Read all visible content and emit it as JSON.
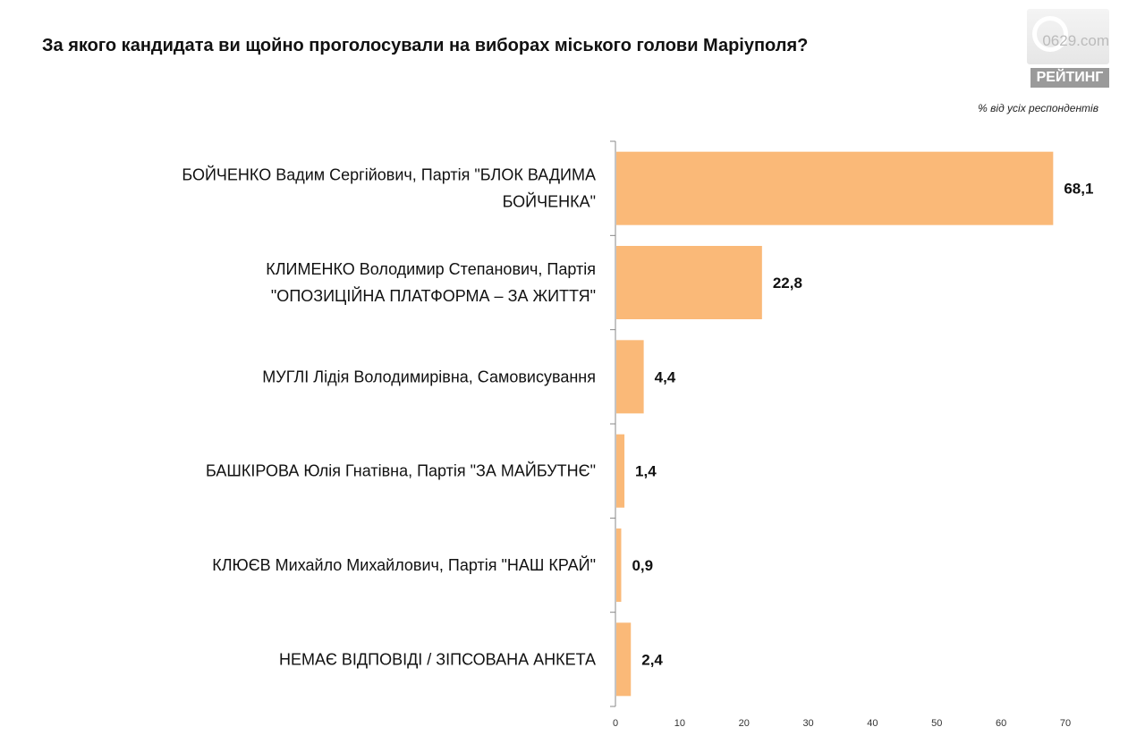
{
  "chart_data": {
    "type": "bar",
    "orientation": "horizontal",
    "title": "За якого кандидата ви щойно проголосували на виборах міського голови Маріуполя?",
    "subtitle": "% від усіх респондентів",
    "categories": [
      [
        "БОЙЧЕНКО Вадим Сергійович, Партія \"БЛОК ВАДИМА",
        "БОЙЧЕНКА\""
      ],
      [
        "КЛИМЕНКО Володимир Степанович, Партія",
        "\"ОПОЗИЦІЙНА ПЛАТФОРМА – ЗА ЖИТТЯ\""
      ],
      [
        "МУГЛІ Лідія Володимирівна, Самовисування"
      ],
      [
        "БАШКІРОВА Юлія Гнатівна, Партія \"ЗА МАЙБУТНЄ\""
      ],
      [
        "КЛЮЄВ Михайло Михайлович, Партія \"НАШ КРАЙ\""
      ],
      [
        "НЕМАЄ ВІДПОВІДІ / ЗІПСОВАНА АНКЕТА"
      ]
    ],
    "values": [
      68.1,
      22.8,
      4.4,
      1.4,
      0.9,
      2.4
    ],
    "value_labels": [
      "68,1",
      "22,8",
      "4,4",
      "1,4",
      "0,9",
      "2,4"
    ],
    "xlim": [
      0,
      70
    ],
    "xticks": [
      0,
      10,
      20,
      30,
      40,
      50,
      60,
      70
    ],
    "bar_color": "#FAB978",
    "grid": false
  },
  "logo": {
    "brand": "0629.com",
    "rating": "РЕЙТИНГ"
  }
}
